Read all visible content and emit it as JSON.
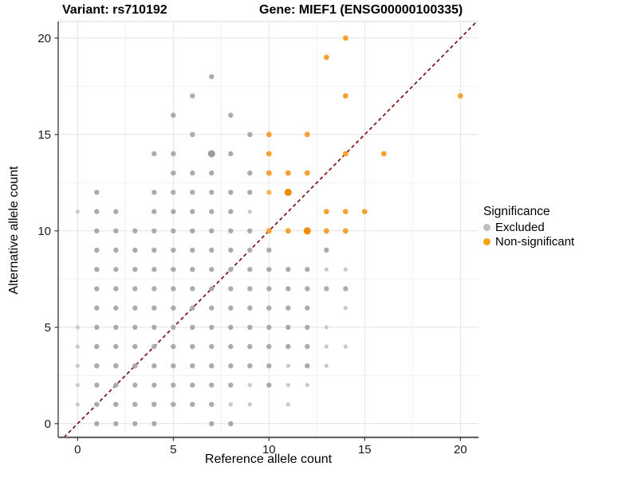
{
  "titles": {
    "variant": "Variant: rs710192",
    "gene": "Gene: MIEF1 (ENSG00000100335)"
  },
  "axes": {
    "x_label": "Reference allele count",
    "y_label": "Alternative allele count",
    "x_ticks": [
      0,
      5,
      10,
      15,
      20
    ],
    "y_ticks": [
      0,
      5,
      10,
      15,
      20
    ]
  },
  "legend": {
    "title": "Significance",
    "items": [
      {
        "label": "Excluded",
        "color": "#bdbdbd"
      },
      {
        "label": "Non-significant",
        "color": "#fca014"
      }
    ]
  },
  "colors": {
    "gray_point": "#ababab",
    "gray_point_light": "#c9c9c9",
    "gray_point_large": "#9b9b9b",
    "orange_point": "#f9a12e",
    "orange_point_light": "#fbb558",
    "orange_point_large": "#f08c00",
    "diagonal_line": "#7a1111",
    "grid_major": "#e3e3e3",
    "grid_minor": "#f1f1f1",
    "axis_line_left": "#333333",
    "axis_line_bottom": "#666666",
    "panel_top_border": "#d9d9d9",
    "tick_text": "#1a1a1a"
  },
  "chart_data": {
    "type": "scatter",
    "title": "Variant: rs710192 — Gene: MIEF1 (ENSG00000100335)",
    "xlabel": "Reference allele count",
    "ylabel": "Alternative allele count",
    "xlim": [
      -1,
      21
    ],
    "ylim": [
      -0.7,
      20.9
    ],
    "grid": "on",
    "legend_position": "right",
    "diagonal_reference_line": {
      "equation": "y = x",
      "style": "dashed",
      "color": "#7a1111"
    },
    "series": [
      {
        "name": "Excluded",
        "color": "#ababab",
        "points": [
          [
            1,
            0
          ],
          [
            2,
            0
          ],
          [
            3,
            0
          ],
          [
            4,
            0
          ],
          [
            7,
            0
          ],
          [
            8,
            0
          ],
          [
            1,
            1
          ],
          [
            2,
            1
          ],
          [
            3,
            1
          ],
          [
            4,
            1
          ],
          [
            5,
            1
          ],
          [
            6,
            1
          ],
          [
            7,
            1
          ],
          [
            1,
            2
          ],
          [
            2,
            2
          ],
          [
            3,
            2
          ],
          [
            4,
            2
          ],
          [
            5,
            2
          ],
          [
            6,
            2
          ],
          [
            7,
            2
          ],
          [
            8,
            2
          ],
          [
            10,
            2
          ],
          [
            1,
            3
          ],
          [
            2,
            3
          ],
          [
            3,
            3
          ],
          [
            4,
            3
          ],
          [
            5,
            3
          ],
          [
            6,
            3
          ],
          [
            7,
            3
          ],
          [
            8,
            3
          ],
          [
            9,
            3
          ],
          [
            10,
            3
          ],
          [
            12,
            3
          ],
          [
            1,
            4
          ],
          [
            2,
            4
          ],
          [
            3,
            4
          ],
          [
            4,
            4
          ],
          [
            5,
            4
          ],
          [
            6,
            4
          ],
          [
            7,
            4
          ],
          [
            8,
            4
          ],
          [
            9,
            4
          ],
          [
            10,
            4
          ],
          [
            11,
            4
          ],
          [
            12,
            4
          ],
          [
            1,
            5
          ],
          [
            2,
            5
          ],
          [
            3,
            5
          ],
          [
            4,
            5
          ],
          [
            5,
            5
          ],
          [
            6,
            5
          ],
          [
            7,
            5
          ],
          [
            8,
            5
          ],
          [
            9,
            5
          ],
          [
            10,
            5
          ],
          [
            11,
            5
          ],
          [
            12,
            5
          ],
          [
            1,
            6
          ],
          [
            2,
            6
          ],
          [
            3,
            6
          ],
          [
            4,
            6
          ],
          [
            5,
            6
          ],
          [
            6,
            6
          ],
          [
            7,
            6
          ],
          [
            8,
            6
          ],
          [
            9,
            6
          ],
          [
            10,
            6
          ],
          [
            11,
            6
          ],
          [
            12,
            6
          ],
          [
            1,
            7
          ],
          [
            2,
            7
          ],
          [
            3,
            7
          ],
          [
            4,
            7
          ],
          [
            5,
            7
          ],
          [
            6,
            7
          ],
          [
            7,
            7
          ],
          [
            8,
            7
          ],
          [
            9,
            7
          ],
          [
            10,
            7
          ],
          [
            11,
            7
          ],
          [
            12,
            7
          ],
          [
            13,
            7
          ],
          [
            14,
            7
          ],
          [
            1,
            8
          ],
          [
            2,
            8
          ],
          [
            3,
            8
          ],
          [
            4,
            8
          ],
          [
            5,
            8
          ],
          [
            6,
            8
          ],
          [
            7,
            8
          ],
          [
            8,
            8
          ],
          [
            9,
            8
          ],
          [
            10,
            8
          ],
          [
            11,
            8
          ],
          [
            12,
            8
          ],
          [
            1,
            9
          ],
          [
            2,
            9
          ],
          [
            3,
            9
          ],
          [
            4,
            9
          ],
          [
            5,
            9
          ],
          [
            6,
            9
          ],
          [
            7,
            9
          ],
          [
            8,
            9
          ],
          [
            9,
            9
          ],
          [
            10,
            9
          ],
          [
            13,
            9
          ],
          [
            1,
            10
          ],
          [
            2,
            10
          ],
          [
            3,
            10
          ],
          [
            4,
            10
          ],
          [
            5,
            10
          ],
          [
            6,
            10
          ],
          [
            7,
            10
          ],
          [
            8,
            10
          ],
          [
            9,
            10
          ],
          [
            1,
            11
          ],
          [
            2,
            11
          ],
          [
            4,
            11
          ],
          [
            5,
            11
          ],
          [
            6,
            11
          ],
          [
            7,
            11
          ],
          [
            8,
            11
          ],
          [
            1,
            12
          ],
          [
            4,
            12
          ],
          [
            5,
            12
          ],
          [
            6,
            12
          ],
          [
            7,
            12
          ],
          [
            8,
            12
          ],
          [
            9,
            12
          ],
          [
            5,
            13
          ],
          [
            6,
            13
          ],
          [
            7,
            13
          ],
          [
            9,
            13
          ],
          [
            4,
            14
          ],
          [
            5,
            14
          ],
          [
            8,
            14
          ],
          [
            6,
            15
          ],
          [
            9,
            15
          ],
          [
            5,
            16
          ],
          [
            8,
            16
          ],
          [
            6,
            17
          ],
          [
            7,
            18
          ]
        ],
        "points_faint": [
          [
            0,
            1
          ],
          [
            0,
            2
          ],
          [
            0,
            3
          ],
          [
            0,
            4
          ],
          [
            0,
            5
          ],
          [
            0,
            11
          ],
          [
            8,
            1
          ],
          [
            9,
            1
          ],
          [
            11,
            1
          ],
          [
            9,
            2
          ],
          [
            11,
            2
          ],
          [
            12,
            2
          ],
          [
            11,
            3
          ],
          [
            13,
            3
          ],
          [
            13,
            4
          ],
          [
            14,
            4
          ],
          [
            13,
            5
          ],
          [
            14,
            6
          ],
          [
            13,
            8
          ],
          [
            14,
            8
          ],
          [
            9,
            11
          ]
        ],
        "points_large": [
          [
            7,
            14
          ]
        ]
      },
      {
        "name": "Non-significant",
        "color": "#f9a12e",
        "points": [
          [
            10,
            10
          ],
          [
            11,
            10
          ],
          [
            13,
            10
          ],
          [
            14,
            10
          ],
          [
            13,
            11
          ],
          [
            14,
            11
          ],
          [
            15,
            11
          ],
          [
            10,
            13
          ],
          [
            11,
            13
          ],
          [
            12,
            13
          ],
          [
            10,
            14
          ],
          [
            14,
            14
          ],
          [
            16,
            14
          ],
          [
            10,
            15
          ],
          [
            12,
            15
          ],
          [
            14,
            17
          ],
          [
            20,
            17
          ],
          [
            13,
            19
          ],
          [
            14,
            20
          ]
        ],
        "points_faint": [
          [
            10,
            12
          ]
        ],
        "points_large": [
          [
            11,
            12
          ],
          [
            12,
            10
          ]
        ]
      }
    ]
  }
}
